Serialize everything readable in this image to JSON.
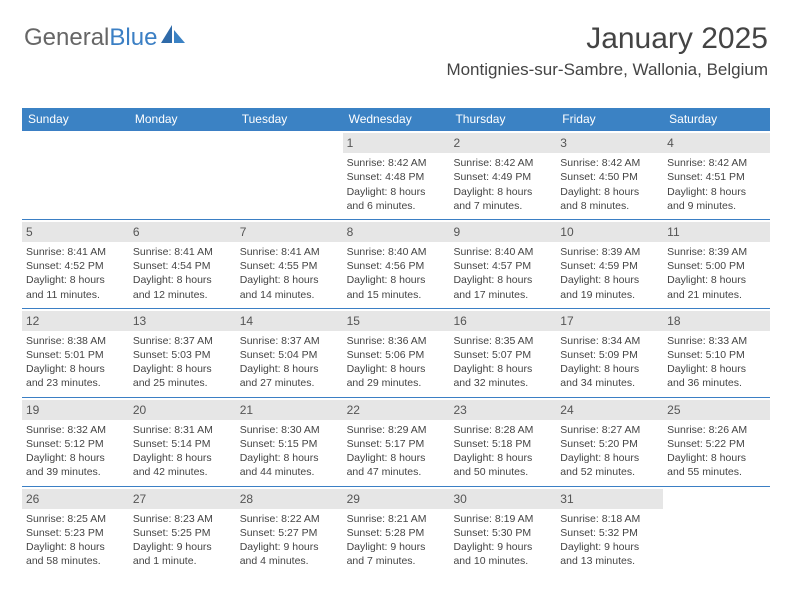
{
  "brand": {
    "part1": "General",
    "part2": "Blue"
  },
  "title": "January 2025",
  "location": "Montignies-sur-Sambre, Wallonia, Belgium",
  "colors": {
    "header_bg": "#3b82c4",
    "header_text": "#ffffff",
    "daynum_bg": "#e6e6e6",
    "border": "#3b7fc4",
    "text": "#444444"
  },
  "day_labels": [
    "Sunday",
    "Monday",
    "Tuesday",
    "Wednesday",
    "Thursday",
    "Friday",
    "Saturday"
  ],
  "weeks": [
    [
      null,
      null,
      null,
      {
        "n": "1",
        "sr": "Sunrise: 8:42 AM",
        "ss": "Sunset: 4:48 PM",
        "d1": "Daylight: 8 hours",
        "d2": "and 6 minutes."
      },
      {
        "n": "2",
        "sr": "Sunrise: 8:42 AM",
        "ss": "Sunset: 4:49 PM",
        "d1": "Daylight: 8 hours",
        "d2": "and 7 minutes."
      },
      {
        "n": "3",
        "sr": "Sunrise: 8:42 AM",
        "ss": "Sunset: 4:50 PM",
        "d1": "Daylight: 8 hours",
        "d2": "and 8 minutes."
      },
      {
        "n": "4",
        "sr": "Sunrise: 8:42 AM",
        "ss": "Sunset: 4:51 PM",
        "d1": "Daylight: 8 hours",
        "d2": "and 9 minutes."
      }
    ],
    [
      {
        "n": "5",
        "sr": "Sunrise: 8:41 AM",
        "ss": "Sunset: 4:52 PM",
        "d1": "Daylight: 8 hours",
        "d2": "and 11 minutes."
      },
      {
        "n": "6",
        "sr": "Sunrise: 8:41 AM",
        "ss": "Sunset: 4:54 PM",
        "d1": "Daylight: 8 hours",
        "d2": "and 12 minutes."
      },
      {
        "n": "7",
        "sr": "Sunrise: 8:41 AM",
        "ss": "Sunset: 4:55 PM",
        "d1": "Daylight: 8 hours",
        "d2": "and 14 minutes."
      },
      {
        "n": "8",
        "sr": "Sunrise: 8:40 AM",
        "ss": "Sunset: 4:56 PM",
        "d1": "Daylight: 8 hours",
        "d2": "and 15 minutes."
      },
      {
        "n": "9",
        "sr": "Sunrise: 8:40 AM",
        "ss": "Sunset: 4:57 PM",
        "d1": "Daylight: 8 hours",
        "d2": "and 17 minutes."
      },
      {
        "n": "10",
        "sr": "Sunrise: 8:39 AM",
        "ss": "Sunset: 4:59 PM",
        "d1": "Daylight: 8 hours",
        "d2": "and 19 minutes."
      },
      {
        "n": "11",
        "sr": "Sunrise: 8:39 AM",
        "ss": "Sunset: 5:00 PM",
        "d1": "Daylight: 8 hours",
        "d2": "and 21 minutes."
      }
    ],
    [
      {
        "n": "12",
        "sr": "Sunrise: 8:38 AM",
        "ss": "Sunset: 5:01 PM",
        "d1": "Daylight: 8 hours",
        "d2": "and 23 minutes."
      },
      {
        "n": "13",
        "sr": "Sunrise: 8:37 AM",
        "ss": "Sunset: 5:03 PM",
        "d1": "Daylight: 8 hours",
        "d2": "and 25 minutes."
      },
      {
        "n": "14",
        "sr": "Sunrise: 8:37 AM",
        "ss": "Sunset: 5:04 PM",
        "d1": "Daylight: 8 hours",
        "d2": "and 27 minutes."
      },
      {
        "n": "15",
        "sr": "Sunrise: 8:36 AM",
        "ss": "Sunset: 5:06 PM",
        "d1": "Daylight: 8 hours",
        "d2": "and 29 minutes."
      },
      {
        "n": "16",
        "sr": "Sunrise: 8:35 AM",
        "ss": "Sunset: 5:07 PM",
        "d1": "Daylight: 8 hours",
        "d2": "and 32 minutes."
      },
      {
        "n": "17",
        "sr": "Sunrise: 8:34 AM",
        "ss": "Sunset: 5:09 PM",
        "d1": "Daylight: 8 hours",
        "d2": "and 34 minutes."
      },
      {
        "n": "18",
        "sr": "Sunrise: 8:33 AM",
        "ss": "Sunset: 5:10 PM",
        "d1": "Daylight: 8 hours",
        "d2": "and 36 minutes."
      }
    ],
    [
      {
        "n": "19",
        "sr": "Sunrise: 8:32 AM",
        "ss": "Sunset: 5:12 PM",
        "d1": "Daylight: 8 hours",
        "d2": "and 39 minutes."
      },
      {
        "n": "20",
        "sr": "Sunrise: 8:31 AM",
        "ss": "Sunset: 5:14 PM",
        "d1": "Daylight: 8 hours",
        "d2": "and 42 minutes."
      },
      {
        "n": "21",
        "sr": "Sunrise: 8:30 AM",
        "ss": "Sunset: 5:15 PM",
        "d1": "Daylight: 8 hours",
        "d2": "and 44 minutes."
      },
      {
        "n": "22",
        "sr": "Sunrise: 8:29 AM",
        "ss": "Sunset: 5:17 PM",
        "d1": "Daylight: 8 hours",
        "d2": "and 47 minutes."
      },
      {
        "n": "23",
        "sr": "Sunrise: 8:28 AM",
        "ss": "Sunset: 5:18 PM",
        "d1": "Daylight: 8 hours",
        "d2": "and 50 minutes."
      },
      {
        "n": "24",
        "sr": "Sunrise: 8:27 AM",
        "ss": "Sunset: 5:20 PM",
        "d1": "Daylight: 8 hours",
        "d2": "and 52 minutes."
      },
      {
        "n": "25",
        "sr": "Sunrise: 8:26 AM",
        "ss": "Sunset: 5:22 PM",
        "d1": "Daylight: 8 hours",
        "d2": "and 55 minutes."
      }
    ],
    [
      {
        "n": "26",
        "sr": "Sunrise: 8:25 AM",
        "ss": "Sunset: 5:23 PM",
        "d1": "Daylight: 8 hours",
        "d2": "and 58 minutes."
      },
      {
        "n": "27",
        "sr": "Sunrise: 8:23 AM",
        "ss": "Sunset: 5:25 PM",
        "d1": "Daylight: 9 hours",
        "d2": "and 1 minute."
      },
      {
        "n": "28",
        "sr": "Sunrise: 8:22 AM",
        "ss": "Sunset: 5:27 PM",
        "d1": "Daylight: 9 hours",
        "d2": "and 4 minutes."
      },
      {
        "n": "29",
        "sr": "Sunrise: 8:21 AM",
        "ss": "Sunset: 5:28 PM",
        "d1": "Daylight: 9 hours",
        "d2": "and 7 minutes."
      },
      {
        "n": "30",
        "sr": "Sunrise: 8:19 AM",
        "ss": "Sunset: 5:30 PM",
        "d1": "Daylight: 9 hours",
        "d2": "and 10 minutes."
      },
      {
        "n": "31",
        "sr": "Sunrise: 8:18 AM",
        "ss": "Sunset: 5:32 PM",
        "d1": "Daylight: 9 hours",
        "d2": "and 13 minutes."
      },
      null
    ]
  ]
}
